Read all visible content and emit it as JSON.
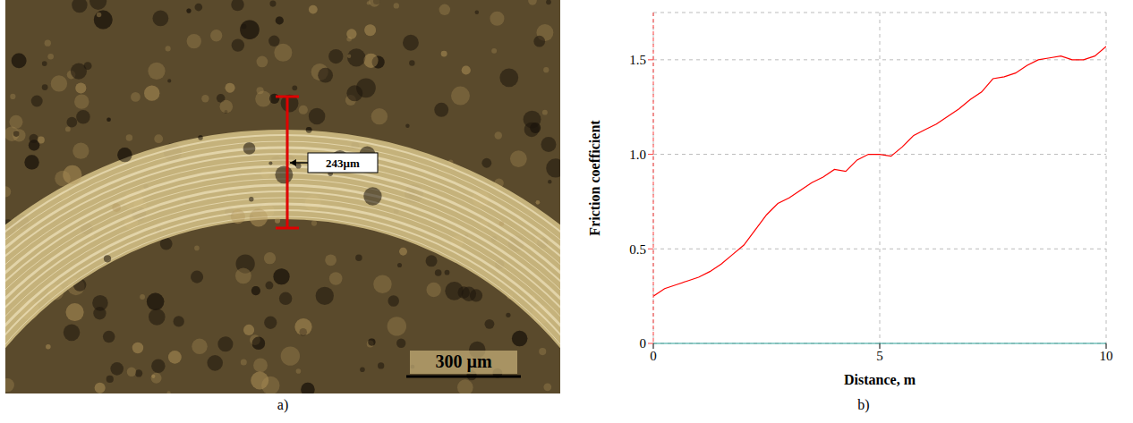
{
  "figure": {
    "panel_labels": [
      "a)",
      "b)"
    ],
    "micrograph": {
      "measurement": "243µm",
      "scale_bar": "300 µm"
    }
  },
  "chart_data": {
    "type": "line",
    "x_label": "Distance, m",
    "y_label": "Friction coefficient",
    "x": [
      0,
      0.25,
      0.5,
      0.75,
      1,
      1.25,
      1.5,
      1.75,
      2,
      2.25,
      2.5,
      2.75,
      3,
      3.25,
      3.5,
      3.75,
      4,
      4.25,
      4.5,
      4.75,
      5,
      5.25,
      5.5,
      5.75,
      6,
      6.25,
      6.5,
      6.75,
      7,
      7.25,
      7.5,
      7.75,
      8,
      8.25,
      8.5,
      8.75,
      9,
      9.25,
      9.5,
      9.75,
      10
    ],
    "values": [
      0.25,
      0.29,
      0.31,
      0.33,
      0.35,
      0.38,
      0.42,
      0.47,
      0.52,
      0.6,
      0.68,
      0.74,
      0.77,
      0.81,
      0.85,
      0.88,
      0.92,
      0.91,
      0.97,
      1.0,
      1.0,
      0.99,
      1.04,
      1.1,
      1.13,
      1.16,
      1.2,
      1.24,
      1.29,
      1.33,
      1.4,
      1.41,
      1.43,
      1.47,
      1.5,
      1.51,
      1.52,
      1.5,
      1.5,
      1.52,
      1.57
    ],
    "color": "#ff0000",
    "xlim": [
      0,
      10
    ],
    "xticks": [
      0,
      5,
      10
    ],
    "ylim": [
      0,
      1.75
    ],
    "yticks": [
      0,
      0.5,
      {
        "value": 1,
        "label": "1.0"
      },
      1.5
    ],
    "grid": true
  }
}
